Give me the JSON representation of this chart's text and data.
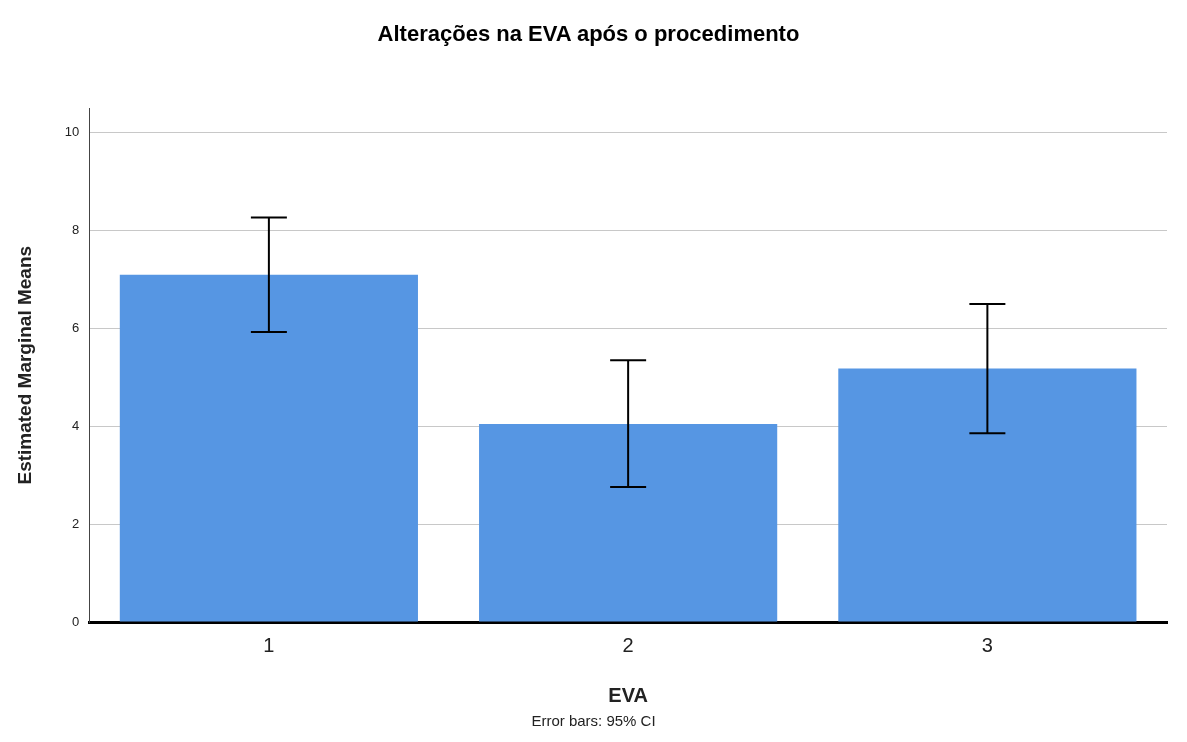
{
  "chart_data": {
    "type": "bar",
    "title": "Alterações na EVA após o procedimento",
    "xlabel": "EVA",
    "ylabel": "Estimated Marginal Means",
    "categories": [
      "1",
      "2",
      "3"
    ],
    "values": [
      7.1,
      4.05,
      5.18
    ],
    "errors": [
      [
        5.93,
        8.27
      ],
      [
        2.76,
        5.35
      ],
      [
        3.86,
        6.5
      ]
    ],
    "color": "#5696e3",
    "ylim": [
      0,
      10.5
    ],
    "yticks": [
      0,
      2,
      4,
      6,
      8,
      10
    ],
    "grid": "y",
    "annotations": [
      "Error bars: 95% CI"
    ]
  }
}
